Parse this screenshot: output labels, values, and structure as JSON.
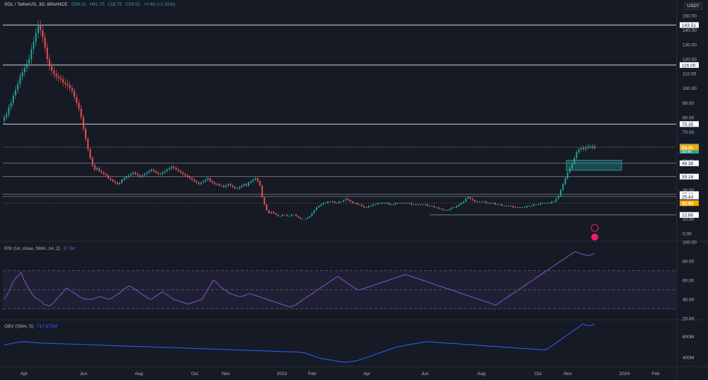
{
  "header": {
    "symbol": "SOL / TetherUS, 3D, BINANCE",
    "open": "O59.31",
    "high": "H61.70",
    "low": "L58.75",
    "close": "C59.91",
    "change": "+0.60 (+1.01%)",
    "currency": "USDT"
  },
  "rsi_legend": {
    "label": "RSI (14, close, SMA, 14, 2)",
    "value": "87.94"
  },
  "obv_legend": {
    "label": "OBV (SMA, 5)",
    "value": "717.878M"
  },
  "colors": {
    "bg": "#161a25",
    "up": "#26a69a",
    "down": "#ef5350",
    "rsi": "#7e57c2",
    "obv": "#2962ff",
    "orange": "#f7a600",
    "text": "#b2b5be"
  },
  "chart_data": [
    {
      "type": "candlestick",
      "title": "SOL / TetherUS, 3D, BINANCE",
      "y_axis_ticks": [
        "150.00",
        "140.00",
        "130.00",
        "120.00",
        "110.00",
        "100.00",
        "90.00",
        "80.00",
        "70.00",
        "60.00",
        "50.00",
        "40.00",
        "30.00",
        "20.00",
        "10.00",
        "0.00"
      ],
      "y_axis_tick_values": [
        150,
        140,
        130,
        120,
        110,
        100,
        90,
        80,
        70,
        60,
        50,
        40,
        30,
        20,
        10,
        0
      ],
      "x_axis_labels": [
        "Apr",
        "Jun",
        "Aug",
        "Oct",
        "Nov",
        "2023",
        "Feb",
        "Apr",
        "Jun",
        "Aug",
        "Oct",
        "Nov",
        "2024",
        "Feb"
      ],
      "ylim": [
        0,
        152
      ],
      "horizontal_levels": [
        {
          "label": "143.51",
          "value": 143.51
        },
        {
          "label": "116.00",
          "value": 116.0
        },
        {
          "label": "75.35",
          "value": 75.35
        },
        {
          "label": "48.38",
          "value": 48.38
        },
        {
          "label": "39.18",
          "value": 39.18
        },
        {
          "label": "27.12",
          "value": 27.12
        },
        {
          "label": "25.43",
          "value": 25.43
        },
        {
          "label": "12.80",
          "value": 12.8
        }
      ],
      "price_labels": [
        {
          "label": "59.91",
          "sub": "2d 9h",
          "value": 59.91,
          "color": "#26a69a"
        },
        {
          "label": "59.31",
          "value": 59.31,
          "color": "#f7a600"
        },
        {
          "label": "20.93",
          "value": 20.93,
          "color": "#f7a600"
        }
      ],
      "series": [
        {
          "name": "price",
          "values": [
            80,
            82,
            87,
            90,
            95,
            99,
            103,
            108,
            111,
            114,
            117,
            120,
            127,
            132,
            138,
            143,
            140,
            135,
            128,
            120,
            115,
            112,
            110,
            108,
            107,
            106,
            104,
            103,
            102,
            100,
            98,
            94,
            90,
            86,
            80,
            72,
            65,
            58,
            52,
            47,
            44,
            45,
            43,
            42,
            41,
            40,
            38,
            37,
            36,
            35,
            34,
            35,
            37,
            38,
            39,
            40,
            41,
            42,
            41,
            40,
            39,
            40,
            41,
            42,
            43,
            44,
            43,
            42,
            41,
            41,
            42,
            43,
            44,
            45,
            46,
            45,
            44,
            43,
            42,
            41,
            40,
            39,
            38,
            37,
            36,
            35,
            34,
            35,
            36,
            37,
            38,
            36,
            35,
            34,
            34,
            33,
            33,
            32,
            33,
            34,
            33,
            32,
            31,
            31,
            32,
            33,
            34,
            33,
            35,
            36,
            37,
            38,
            36,
            33,
            25,
            20,
            16,
            14,
            15,
            14,
            13,
            12,
            12,
            13,
            13,
            12,
            12,
            13,
            13,
            12,
            11,
            10,
            10,
            10,
            11,
            12,
            14,
            16,
            18,
            19,
            20,
            21,
            21,
            22,
            22,
            22,
            21,
            21,
            22,
            22,
            23,
            24,
            23,
            22,
            21,
            21,
            20,
            20,
            19,
            18,
            18,
            19,
            19,
            20,
            20,
            21,
            21,
            21,
            21,
            21,
            20,
            20,
            20,
            21,
            21,
            21,
            21,
            21,
            21,
            21,
            20,
            20,
            20,
            20,
            20,
            20,
            20,
            19,
            19,
            19,
            18,
            18,
            17,
            17,
            16,
            16,
            16,
            17,
            18,
            18,
            19,
            20,
            21,
            22,
            24,
            25,
            24,
            23,
            22,
            22,
            22,
            22,
            22,
            21,
            21,
            21,
            21,
            20,
            20,
            20,
            19,
            19,
            19,
            19,
            19,
            18,
            18,
            18,
            18,
            18,
            18,
            19,
            19,
            19,
            20,
            20,
            20,
            21,
            21,
            21,
            21,
            21,
            22,
            22,
            24,
            26,
            30,
            34,
            38,
            42,
            45,
            48,
            52,
            56,
            58,
            59,
            58,
            59,
            60,
            60,
            59,
            59.91
          ]
        },
        {
          "name": "RSI",
          "values": [
            40,
            45,
            50,
            58,
            62,
            65,
            68,
            60,
            55,
            50,
            45,
            42,
            40,
            38,
            35,
            34,
            33,
            35,
            38,
            42,
            45,
            48,
            52,
            50,
            48,
            46,
            44,
            42,
            41,
            40,
            40,
            40,
            41,
            42,
            43,
            42,
            41,
            40,
            41,
            43,
            45,
            47,
            50,
            52,
            54,
            53,
            51,
            49,
            47,
            45,
            43,
            41,
            40,
            42,
            44,
            46,
            48,
            46,
            44,
            42,
            40,
            39,
            38,
            37,
            36,
            35,
            36,
            37,
            38,
            39,
            40,
            45,
            50,
            55,
            60,
            58,
            55,
            52,
            50,
            48,
            46,
            45,
            44,
            43,
            43,
            44,
            45,
            46,
            45,
            44,
            43,
            42,
            41,
            40,
            39,
            38,
            37,
            36,
            35,
            34,
            33,
            32,
            33,
            34,
            36,
            38,
            40,
            42,
            44,
            46,
            48,
            50,
            52,
            54,
            56,
            58,
            60,
            62,
            64,
            62,
            60,
            58,
            56,
            54,
            52,
            50,
            50,
            51,
            52,
            53,
            54,
            55,
            56,
            57,
            58,
            59,
            60,
            61,
            62,
            63,
            64,
            65,
            66,
            65,
            64,
            63,
            62,
            61,
            60,
            59,
            58,
            57,
            56,
            55,
            54,
            53,
            52,
            51,
            50,
            49,
            48,
            47,
            46,
            45,
            44,
            43,
            42,
            41,
            40,
            39,
            38,
            37,
            36,
            35,
            34,
            36,
            38,
            40,
            42,
            44,
            46,
            48,
            50,
            52,
            54,
            56,
            58,
            60,
            62,
            64,
            66,
            68,
            70,
            72,
            74,
            76,
            78,
            80,
            82,
            84,
            86,
            88,
            90,
            89,
            88,
            87,
            86,
            86,
            87,
            87.94
          ]
        },
        {
          "name": "OBV",
          "values": [
            520,
            525,
            530,
            535,
            540,
            545,
            548,
            550,
            548,
            545,
            542,
            540,
            538,
            536,
            535,
            534,
            533,
            532,
            531,
            530,
            529,
            528,
            527,
            526,
            525,
            524,
            523,
            522,
            521,
            520,
            519,
            518,
            517,
            516,
            515,
            514,
            513,
            512,
            511,
            510,
            509,
            508,
            507,
            506,
            505,
            504,
            503,
            502,
            501,
            500,
            499,
            498,
            497,
            496,
            495,
            494,
            493,
            492,
            491,
            490,
            489,
            488,
            487,
            486,
            485,
            484,
            483,
            482,
            481,
            480,
            479,
            478,
            477,
            476,
            475,
            474,
            473,
            472,
            471,
            470,
            469,
            468,
            467,
            466,
            465,
            464,
            463,
            462,
            461,
            460,
            459,
            458,
            457,
            456,
            455,
            454,
            453,
            452,
            451,
            450,
            448,
            445,
            440,
            430,
            420,
            410,
            400,
            390,
            385,
            380,
            375,
            370,
            365,
            360,
            355,
            350,
            352,
            355,
            360,
            365,
            370,
            380,
            390,
            400,
            410,
            420,
            430,
            440,
            450,
            460,
            470,
            480,
            490,
            500,
            505,
            510,
            515,
            520,
            525,
            530,
            535,
            540,
            545,
            550,
            548,
            546,
            544,
            542,
            540,
            538,
            536,
            534,
            532,
            530,
            528,
            526,
            524,
            522,
            520,
            518,
            516,
            514,
            512,
            510,
            508,
            506,
            504,
            502,
            500,
            498,
            496,
            494,
            492,
            490,
            488,
            486,
            484,
            482,
            480,
            478,
            476,
            474,
            472,
            470,
            480,
            500,
            520,
            540,
            560,
            580,
            600,
            620,
            640,
            660,
            680,
            700,
            720,
            710,
            705,
            710,
            717.878
          ]
        }
      ]
    },
    {
      "type": "line",
      "title": "RSI (14, close, SMA, 14, 2)",
      "y_axis_ticks": [
        "100.00",
        "80.00",
        "60.00",
        "40.00",
        "20.00"
      ],
      "y_axis_tick_values": [
        100,
        80,
        60,
        40,
        20
      ],
      "ylim": [
        20,
        100
      ],
      "bands": {
        "upper": 70,
        "middle": 50,
        "lower": 30
      }
    },
    {
      "type": "line",
      "title": "OBV (SMA, 5)",
      "y_axis_ticks": [
        "600M",
        "400M"
      ],
      "y_axis_tick_values": [
        600,
        400
      ],
      "ylim": [
        330,
        740
      ]
    }
  ]
}
